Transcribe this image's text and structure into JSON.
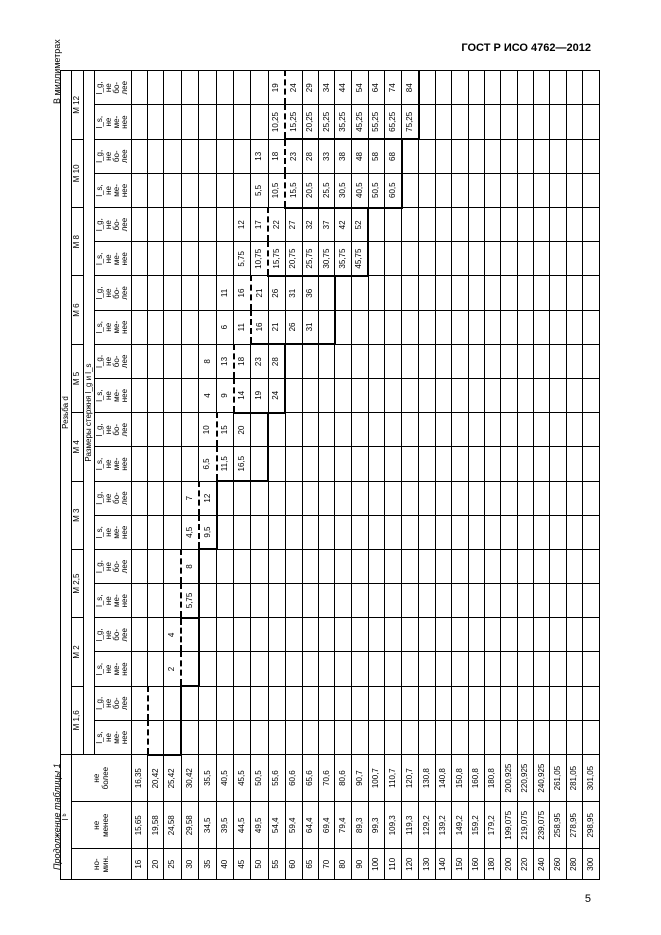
{
  "standard": "ГОСТ Р ИСО 4762—2012",
  "caption": "Продолжение таблицы 1",
  "unit_note": "В миллиметрах",
  "page_num": "5",
  "h": {
    "thread": "Резьба d",
    "nominal": "l ᵇ",
    "lg_ls": "Размеры стержня l_g и l_s",
    "nom": "но-\nмин.",
    "min": "не\nменее",
    "max": "не\nболее",
    "ls": "l_s,\nне\nме-\nнее",
    "lg": "l_g,\nне\nбо-\nлее",
    "sizes": [
      "M 1,6",
      "M 2",
      "M 2,5",
      "M 3",
      "M 4",
      "M 5",
      "M 6",
      "M 8",
      "M 10",
      "M 12"
    ]
  },
  "rows": [
    {
      "n": "16",
      "min": "15,65",
      "max": "16,35",
      "c": [
        "",
        "",
        "",
        "",
        "",
        "",
        "",
        "",
        "",
        "",
        "",
        "",
        "",
        "",
        "",
        "",
        "",
        "",
        "",
        ""
      ]
    },
    {
      "n": "20",
      "min": "19,58",
      "max": "20,42",
      "c": [
        "",
        "",
        "",
        "",
        "",
        "",
        "",
        "",
        "",
        "",
        "",
        "",
        "",
        "",
        "",
        "",
        "",
        "",
        "",
        ""
      ]
    },
    {
      "n": "25",
      "min": "24,58",
      "max": "25,42",
      "c": [
        "",
        "",
        "2",
        "4",
        "",
        "",
        "",
        "",
        "",
        "",
        "",
        "",
        "",
        "",
        "",
        "",
        "",
        "",
        "",
        ""
      ]
    },
    {
      "n": "30",
      "min": "29,58",
      "max": "30,42",
      "c": [
        "",
        "",
        "",
        "",
        "5,75",
        "8",
        "4,5",
        "7",
        "",
        "",
        "",
        "",
        "",
        "",
        "",
        "",
        "",
        "",
        "",
        ""
      ]
    },
    {
      "n": "35",
      "min": "34,5",
      "max": "35,5",
      "c": [
        "",
        "",
        "",
        "",
        "",
        "",
        "9,5",
        "12",
        "6,5",
        "10",
        "4",
        "8",
        "",
        "",
        "",
        "",
        "",
        "",
        "",
        ""
      ]
    },
    {
      "n": "40",
      "min": "39,5",
      "max": "40,5",
      "c": [
        "",
        "",
        "",
        "",
        "",
        "",
        "",
        "",
        "11,5",
        "15",
        "9",
        "13",
        "6",
        "11",
        "",
        "",
        "",
        "",
        "",
        ""
      ]
    },
    {
      "n": "45",
      "min": "44,5",
      "max": "45,5",
      "c": [
        "",
        "",
        "",
        "",
        "",
        "",
        "",
        "",
        "16,5",
        "20",
        "14",
        "18",
        "11",
        "16",
        "5,75",
        "12",
        "",
        "",
        "",
        ""
      ]
    },
    {
      "n": "50",
      "min": "49,5",
      "max": "50,5",
      "c": [
        "",
        "",
        "",
        "",
        "",
        "",
        "",
        "",
        "",
        "",
        "19",
        "23",
        "16",
        "21",
        "10,75",
        "17",
        "5,5",
        "13",
        "",
        ""
      ]
    },
    {
      "n": "55",
      "min": "54,4",
      "max": "55,6",
      "c": [
        "",
        "",
        "",
        "",
        "",
        "",
        "",
        "",
        "",
        "",
        "24",
        "28",
        "21",
        "26",
        "15,75",
        "22",
        "10,5",
        "18",
        "10,25",
        "19"
      ]
    },
    {
      "n": "60",
      "min": "59,4",
      "max": "60,6",
      "c": [
        "",
        "",
        "",
        "",
        "",
        "",
        "",
        "",
        "",
        "",
        "",
        "",
        "26",
        "31",
        "20,75",
        "27",
        "15,5",
        "23",
        "15,25",
        "24"
      ]
    },
    {
      "n": "65",
      "min": "64,4",
      "max": "65,6",
      "c": [
        "",
        "",
        "",
        "",
        "",
        "",
        "",
        "",
        "",
        "",
        "",
        "",
        "31",
        "36",
        "25,75",
        "32",
        "20,5",
        "28",
        "20,25",
        "29"
      ]
    },
    {
      "n": "70",
      "min": "69,4",
      "max": "70,6",
      "c": [
        "",
        "",
        "",
        "",
        "",
        "",
        "",
        "",
        "",
        "",
        "",
        "",
        "",
        "",
        "30,75",
        "37",
        "25,5",
        "33",
        "25,25",
        "34"
      ]
    },
    {
      "n": "80",
      "min": "79,4",
      "max": "80,6",
      "c": [
        "",
        "",
        "",
        "",
        "",
        "",
        "",
        "",
        "",
        "",
        "",
        "",
        "",
        "",
        "35,75",
        "42",
        "30,5",
        "38",
        "35,25",
        "44"
      ]
    },
    {
      "n": "90",
      "min": "89,3",
      "max": "90,7",
      "c": [
        "",
        "",
        "",
        "",
        "",
        "",
        "",
        "",
        "",
        "",
        "",
        "",
        "",
        "",
        "45,75",
        "52",
        "40,5",
        "48",
        "45,25",
        "54"
      ]
    },
    {
      "n": "100",
      "min": "99,3",
      "max": "100,7",
      "c": [
        "",
        "",
        "",
        "",
        "",
        "",
        "",
        "",
        "",
        "",
        "",
        "",
        "",
        "",
        "",
        "",
        "50,5",
        "58",
        "55,25",
        "64"
      ]
    },
    {
      "n": "110",
      "min": "109,3",
      "max": "110,7",
      "c": [
        "",
        "",
        "",
        "",
        "",
        "",
        "",
        "",
        "",
        "",
        "",
        "",
        "",
        "",
        "",
        "",
        "60,5",
        "68",
        "65,25",
        "74"
      ]
    },
    {
      "n": "120",
      "min": "119,3",
      "max": "120,7",
      "c": [
        "",
        "",
        "",
        "",
        "",
        "",
        "",
        "",
        "",
        "",
        "",
        "",
        "",
        "",
        "",
        "",
        "",
        "",
        "75,25",
        "84"
      ]
    },
    {
      "n": "130",
      "min": "129,2",
      "max": "130,8",
      "c": [
        "",
        "",
        "",
        "",
        "",
        "",
        "",
        "",
        "",
        "",
        "",
        "",
        "",
        "",
        "",
        "",
        "",
        "",
        "",
        ""
      ]
    },
    {
      "n": "140",
      "min": "139,2",
      "max": "140,8",
      "c": [
        "",
        "",
        "",
        "",
        "",
        "",
        "",
        "",
        "",
        "",
        "",
        "",
        "",
        "",
        "",
        "",
        "",
        "",
        "",
        ""
      ]
    },
    {
      "n": "150",
      "min": "149,2",
      "max": "150,8",
      "c": [
        "",
        "",
        "",
        "",
        "",
        "",
        "",
        "",
        "",
        "",
        "",
        "",
        "",
        "",
        "",
        "",
        "",
        "",
        "",
        ""
      ]
    },
    {
      "n": "160",
      "min": "159,2",
      "max": "160,8",
      "c": [
        "",
        "",
        "",
        "",
        "",
        "",
        "",
        "",
        "",
        "",
        "",
        "",
        "",
        "",
        "",
        "",
        "",
        "",
        "",
        ""
      ]
    },
    {
      "n": "180",
      "min": "179,2",
      "max": "180,8",
      "c": [
        "",
        "",
        "",
        "",
        "",
        "",
        "",
        "",
        "",
        "",
        "",
        "",
        "",
        "",
        "",
        "",
        "",
        "",
        "",
        ""
      ]
    },
    {
      "n": "200",
      "min": "199,075",
      "max": "200,925",
      "c": [
        "",
        "",
        "",
        "",
        "",
        "",
        "",
        "",
        "",
        "",
        "",
        "",
        "",
        "",
        "",
        "",
        "",
        "",
        "",
        ""
      ]
    },
    {
      "n": "220",
      "min": "219,075",
      "max": "220,925",
      "c": [
        "",
        "",
        "",
        "",
        "",
        "",
        "",
        "",
        "",
        "",
        "",
        "",
        "",
        "",
        "",
        "",
        "",
        "",
        "",
        ""
      ]
    },
    {
      "n": "240",
      "min": "239,075",
      "max": "240,925",
      "c": [
        "",
        "",
        "",
        "",
        "",
        "",
        "",
        "",
        "",
        "",
        "",
        "",
        "",
        "",
        "",
        "",
        "",
        "",
        "",
        ""
      ]
    },
    {
      "n": "260",
      "min": "258,95",
      "max": "261,05",
      "c": [
        "",
        "",
        "",
        "",
        "",
        "",
        "",
        "",
        "",
        "",
        "",
        "",
        "",
        "",
        "",
        "",
        "",
        "",
        "",
        ""
      ]
    },
    {
      "n": "280",
      "min": "278,95",
      "max": "281,05",
      "c": [
        "",
        "",
        "",
        "",
        "",
        "",
        "",
        "",
        "",
        "",
        "",
        "",
        "",
        "",
        "",
        "",
        "",
        "",
        "",
        ""
      ]
    },
    {
      "n": "300",
      "min": "298,95",
      "max": "301,05",
      "c": [
        "",
        "",
        "",
        "",
        "",
        "",
        "",
        "",
        "",
        "",
        "",
        "",
        "",
        "",
        "",
        "",
        "",
        "",
        "",
        ""
      ]
    }
  ],
  "solid_step": {
    "0": 2,
    "2": 3,
    "4": 3,
    "6": 4,
    "8": 7,
    "10": 8,
    "12": 11,
    "14": 13,
    "16": 15,
    "18": 16
  },
  "dash_step": {
    "0": 0,
    "2": 2,
    "4": 2,
    "6": 3,
    "8": 4,
    "10": 5,
    "12": 6,
    "14": 7,
    "16": 8,
    "18": 8
  }
}
